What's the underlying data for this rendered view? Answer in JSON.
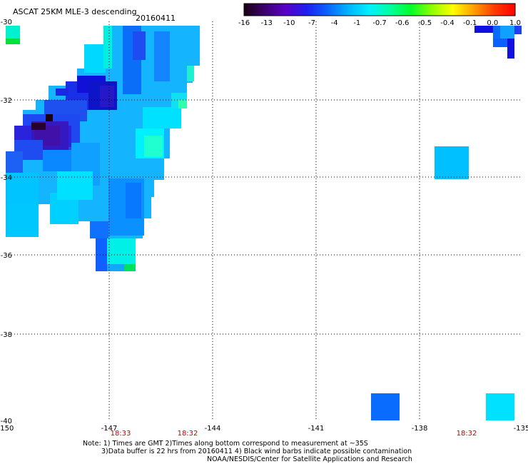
{
  "title": "ASCAT 25KM MLE-3 descending",
  "date": "20160411",
  "colorbar": {
    "labels": [
      "-16",
      "-13",
      "-10",
      "-7",
      "-4",
      "-1",
      "-0.7",
      "-0.6",
      "-0.5",
      "-0.4",
      "-0.1",
      "0.0",
      "1.0"
    ],
    "colors": [
      "#1a0010",
      "#3c0070",
      "#5a00c8",
      "#1e1ef0",
      "#0a64ff",
      "#00b4ff",
      "#00f0ff",
      "#00ffa0",
      "#00ff28",
      "#8cff00",
      "#ffff00",
      "#ffa000",
      "#ff3c00",
      "#ff0000"
    ]
  },
  "axes": {
    "lon_labels": [
      "-150",
      "-147",
      "-144",
      "-141",
      "-138",
      "-135"
    ],
    "lat_labels": [
      "-30",
      "-32",
      "-34",
      "-36",
      "-38",
      "-40"
    ]
  },
  "pass_times": [
    "18:33",
    "18:32",
    "18:32"
  ],
  "notes": {
    "line1": "Note: 1) Times are GMT 2)Times along bottom correspond to measurement at ~35S",
    "line2": "3)Data buffer is 22 hrs from 20160411 4) Black wind barbs indicate possible contamination",
    "line3": "NOAA/NESDIS/Center for Satellite Applications and Research"
  }
}
